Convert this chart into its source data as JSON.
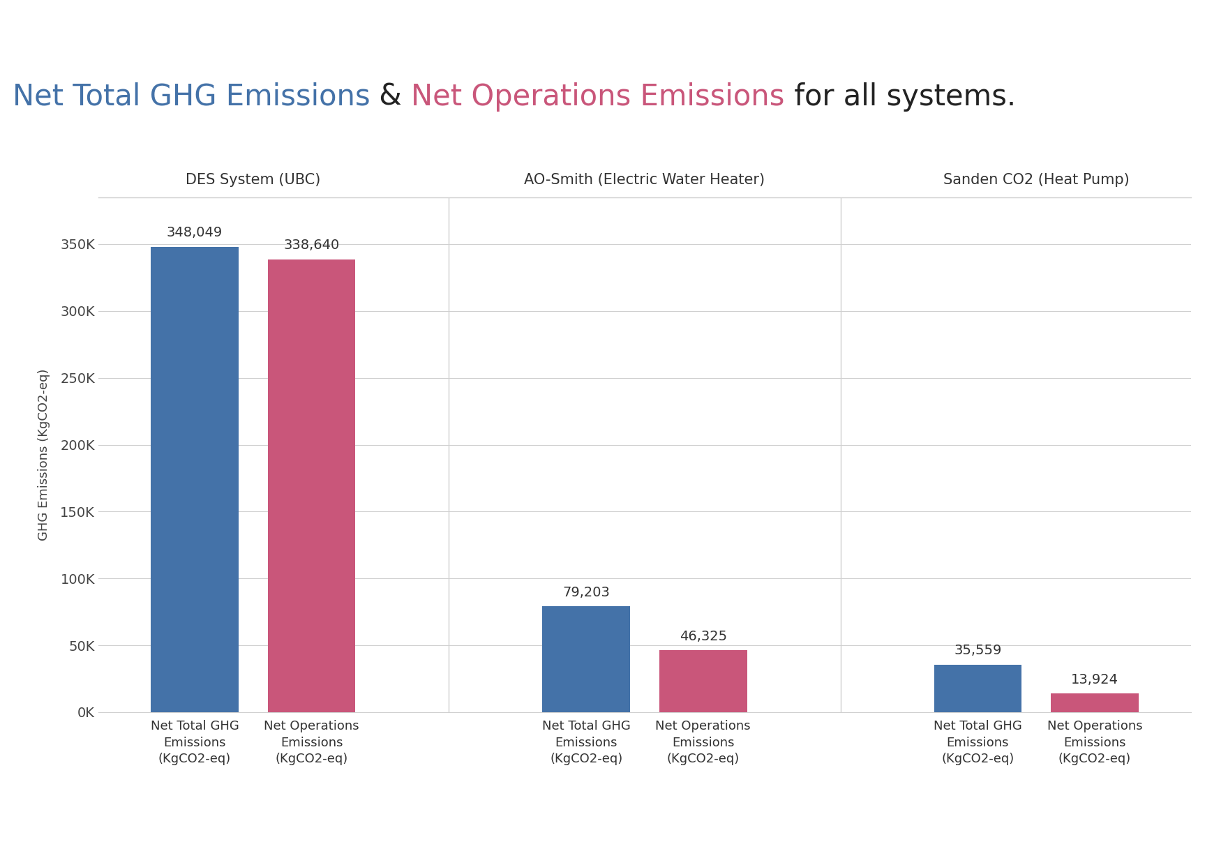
{
  "title_parts": [
    {
      "text": "Net Total GHG Emissions",
      "color": "#4472a8"
    },
    {
      "text": " & ",
      "color": "#222222"
    },
    {
      "text": "Net Operations Emissions",
      "color": "#c9567a"
    },
    {
      "text": " for all systems.",
      "color": "#222222"
    }
  ],
  "group_labels": [
    "DES System (UBC)",
    "AO-Smith (Electric Water Heater)",
    "Sanden CO2 (Heat Pump)"
  ],
  "values_blue": [
    348049,
    79203,
    35559
  ],
  "values_pink": [
    338640,
    46325,
    13924
  ],
  "labels_blue": [
    "348,049",
    "79,203",
    "35,559"
  ],
  "labels_pink": [
    "338,640",
    "46,325",
    "13,924"
  ],
  "blue_color": "#4472a8",
  "pink_color": "#c9567a",
  "background_color": "#ffffff",
  "ylabel": "GHG Emissions (KgCO2-eq)",
  "ylim": [
    0,
    385000
  ],
  "yticks": [
    0,
    50000,
    100000,
    150000,
    200000,
    250000,
    300000,
    350000
  ],
  "ytick_labels": [
    "0K",
    "50K",
    "100K",
    "150K",
    "200K",
    "250K",
    "300K",
    "350K"
  ],
  "grid_color": "#d0d0d0",
  "title_fontsize": 30,
  "axis_label_fontsize": 13,
  "tick_label_fontsize": 14,
  "bar_label_fontsize": 14,
  "group_header_fontsize": 15,
  "xtick_label_0": "Net Total GHG\nEmissions\n(KgCO2-eq)",
  "xtick_label_1": "Net Operations\nEmissions\n(KgCO2-eq)"
}
